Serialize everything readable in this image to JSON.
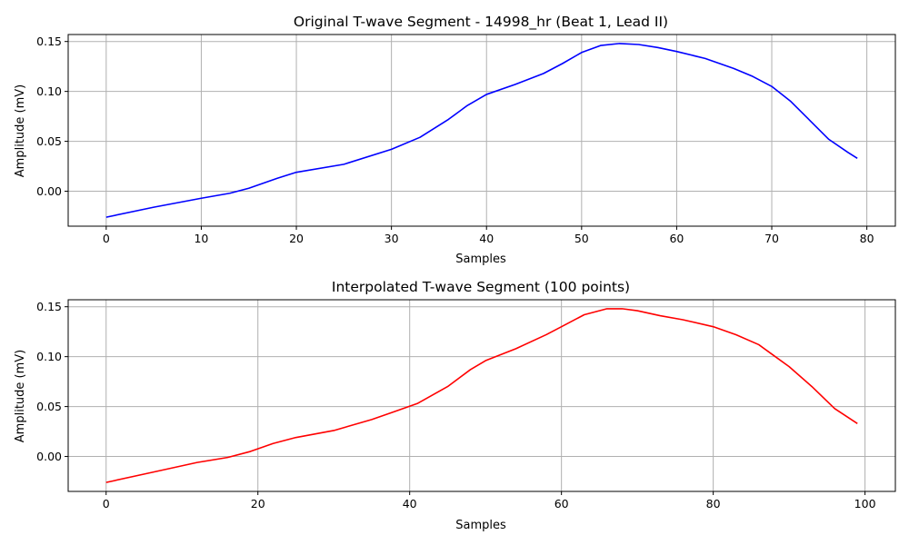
{
  "chart_data": [
    {
      "type": "line",
      "title": "Original T-wave Segment - 14998_hr (Beat 1, Lead II)",
      "xlabel": "Samples",
      "ylabel": "Amplitude (mV)",
      "xlim": [
        -4,
        83
      ],
      "ylim": [
        -0.035,
        0.157
      ],
      "xticks": [
        0,
        10,
        20,
        30,
        40,
        50,
        60,
        70,
        80
      ],
      "yticks": [
        0.0,
        0.05,
        0.1,
        0.15
      ],
      "xtick_labels": [
        "0",
        "10",
        "20",
        "30",
        "40",
        "50",
        "60",
        "70",
        "80"
      ],
      "ytick_labels": [
        "0.00",
        "0.05",
        "0.10",
        "0.15"
      ],
      "grid": true,
      "color": "#0000ff",
      "series": [
        {
          "x": [
            0,
            5,
            10,
            13,
            15,
            18,
            20,
            25,
            30,
            33,
            36,
            38,
            40,
            43,
            46,
            48,
            50,
            52,
            54,
            56,
            58,
            60,
            63,
            66,
            68,
            70,
            72,
            74,
            76,
            78,
            79
          ],
          "y": [
            -0.026,
            -0.016,
            -0.007,
            -0.002,
            0.003,
            0.013,
            0.019,
            0.027,
            0.042,
            0.054,
            0.072,
            0.086,
            0.097,
            0.107,
            0.118,
            0.128,
            0.139,
            0.146,
            0.148,
            0.147,
            0.144,
            0.14,
            0.133,
            0.123,
            0.115,
            0.105,
            0.09,
            0.071,
            0.052,
            0.039,
            0.033
          ]
        }
      ]
    },
    {
      "type": "line",
      "title": "Interpolated T-wave Segment (100 points)",
      "xlabel": "Samples",
      "ylabel": "Amplitude (mV)",
      "xlim": [
        -5,
        104
      ],
      "ylim": [
        -0.035,
        0.157
      ],
      "xticks": [
        0,
        20,
        40,
        60,
        80,
        100
      ],
      "yticks": [
        0.0,
        0.05,
        0.1,
        0.15
      ],
      "xtick_labels": [
        "0",
        "20",
        "40",
        "60",
        "80",
        "100"
      ],
      "ytick_labels": [
        "0.00",
        "0.05",
        "0.10",
        "0.15"
      ],
      "grid": true,
      "color": "#ff0000",
      "series": [
        {
          "x": [
            0,
            6,
            12,
            16,
            19,
            22,
            25,
            30,
            35,
            38,
            41,
            45,
            48,
            50,
            54,
            58,
            60,
            63,
            66,
            68,
            70,
            73,
            76,
            80,
            83,
            86,
            88,
            90,
            93,
            96,
            99
          ],
          "y": [
            -0.026,
            -0.016,
            -0.006,
            -0.001,
            0.005,
            0.013,
            0.019,
            0.026,
            0.037,
            0.045,
            0.053,
            0.07,
            0.087,
            0.096,
            0.108,
            0.122,
            0.13,
            0.142,
            0.148,
            0.148,
            0.146,
            0.141,
            0.137,
            0.13,
            0.122,
            0.112,
            0.101,
            0.09,
            0.07,
            0.048,
            0.033
          ]
        }
      ]
    }
  ]
}
